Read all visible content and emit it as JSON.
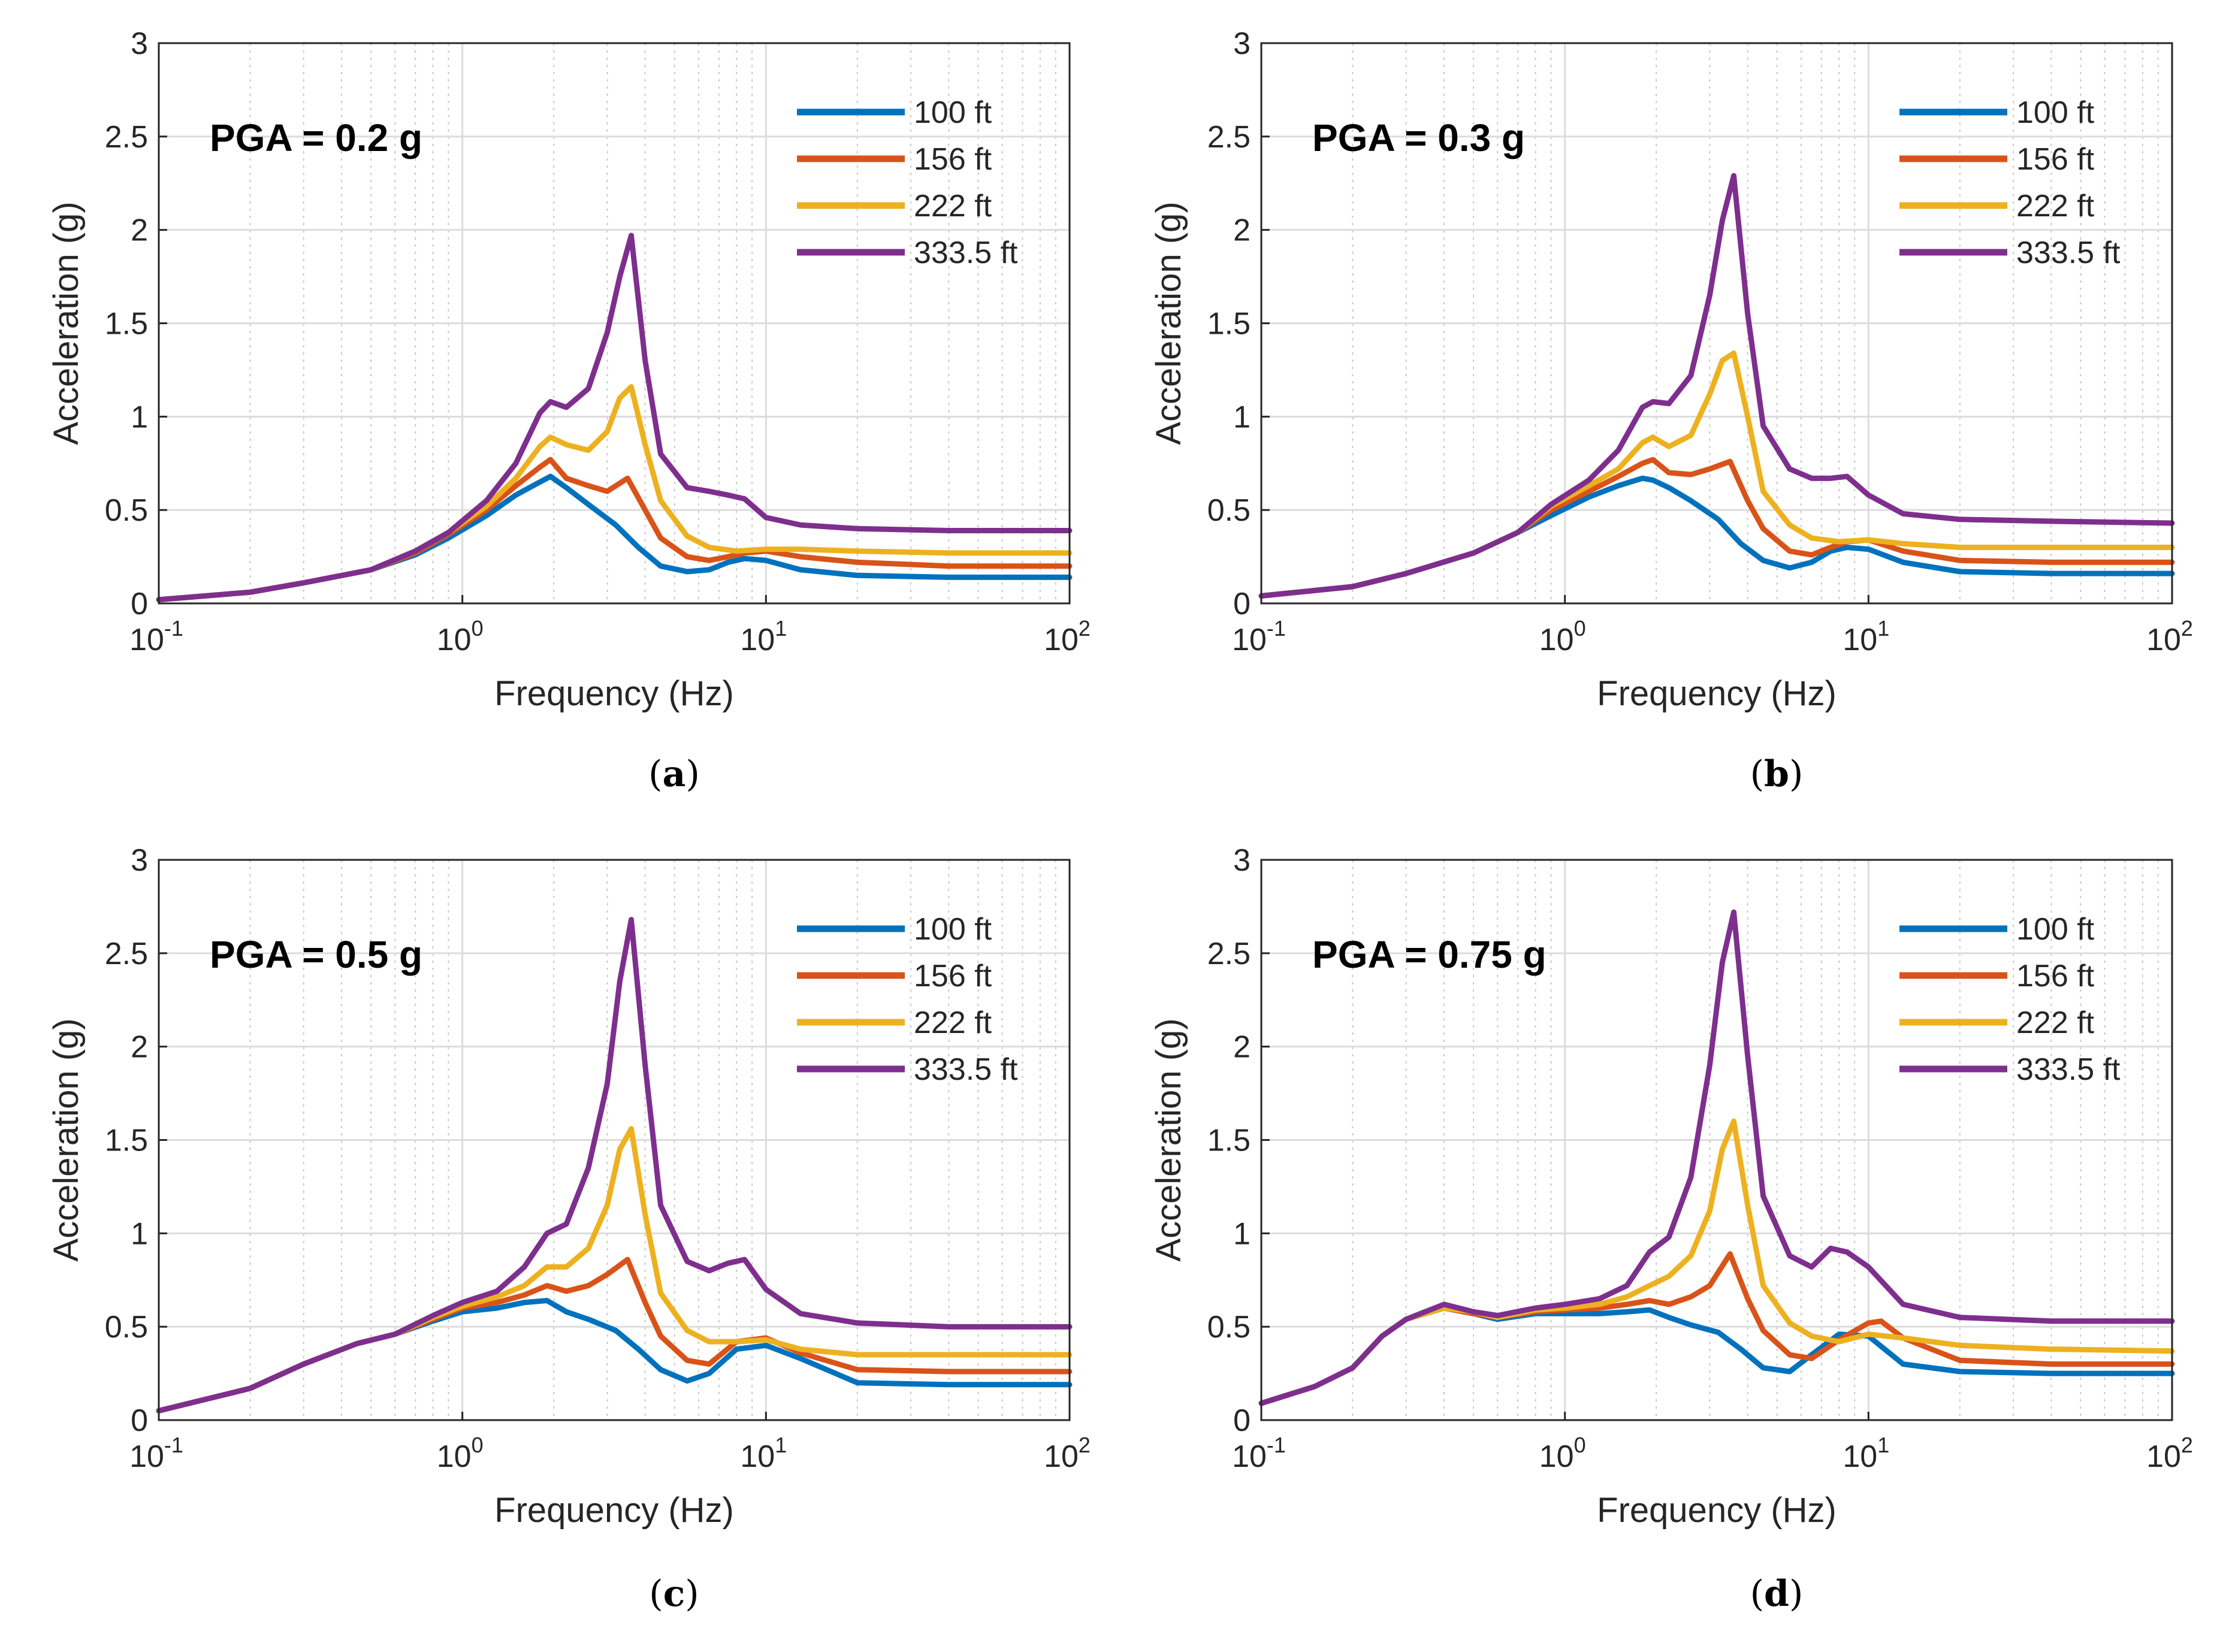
{
  "series_colors": {
    "100 ft": "#0072BD",
    "156 ft": "#D95319",
    "222 ft": "#EDB120",
    "333.5 ft": "#7E2F8E"
  },
  "chart_data": [
    {
      "id": "a",
      "type": "line",
      "caption_letter": "a",
      "annotation": "PGA = 0.2 g",
      "xlabel": "Frequency (Hz)",
      "ylabel": "Acceleration (g)",
      "xscale": "log",
      "xlim": [
        0.1,
        100
      ],
      "ylim": [
        0,
        3
      ],
      "yticks": [
        "0",
        "0.5",
        "1",
        "1.5",
        "2",
        "2.5",
        "3"
      ],
      "xticks": [
        {
          "base": "10",
          "exp": "-1"
        },
        {
          "base": "10",
          "exp": "0"
        },
        {
          "base": "10",
          "exp": "1"
        },
        {
          "base": "10",
          "exp": "2"
        }
      ],
      "legend_position": "top-right",
      "series": [
        {
          "name": "100 ft",
          "x": [
            0.1,
            0.2,
            0.3,
            0.5,
            0.7,
            0.9,
            1.2,
            1.5,
            1.8,
            1.95,
            2.2,
            2.6,
            3.2,
            3.8,
            4.5,
            5.5,
            6.5,
            7.5,
            8.5,
            10,
            13,
            20,
            40,
            100
          ],
          "y": [
            0.02,
            0.06,
            0.11,
            0.18,
            0.26,
            0.35,
            0.47,
            0.58,
            0.65,
            0.68,
            0.62,
            0.53,
            0.42,
            0.3,
            0.2,
            0.17,
            0.18,
            0.22,
            0.24,
            0.23,
            0.18,
            0.15,
            0.14,
            0.14
          ]
        },
        {
          "name": "156 ft",
          "x": [
            0.1,
            0.2,
            0.3,
            0.5,
            0.7,
            0.9,
            1.2,
            1.5,
            1.8,
            1.95,
            2.2,
            2.6,
            3.0,
            3.5,
            4.0,
            4.5,
            5.5,
            6.5,
            7.5,
            8.5,
            10,
            13,
            20,
            40,
            100
          ],
          "y": [
            0.02,
            0.06,
            0.11,
            0.18,
            0.27,
            0.37,
            0.5,
            0.63,
            0.73,
            0.77,
            0.67,
            0.63,
            0.6,
            0.67,
            0.5,
            0.35,
            0.25,
            0.23,
            0.25,
            0.27,
            0.28,
            0.25,
            0.22,
            0.2,
            0.2
          ]
        },
        {
          "name": "222 ft",
          "x": [
            0.1,
            0.2,
            0.3,
            0.5,
            0.7,
            0.9,
            1.2,
            1.5,
            1.8,
            1.95,
            2.2,
            2.6,
            3.0,
            3.3,
            3.6,
            4.0,
            4.5,
            5.5,
            6.5,
            8,
            10,
            13,
            20,
            40,
            100
          ],
          "y": [
            0.02,
            0.06,
            0.11,
            0.18,
            0.28,
            0.38,
            0.52,
            0.67,
            0.84,
            0.89,
            0.85,
            0.82,
            0.92,
            1.1,
            1.16,
            0.85,
            0.55,
            0.36,
            0.3,
            0.28,
            0.29,
            0.29,
            0.28,
            0.27,
            0.27
          ]
        },
        {
          "name": "333.5 ft",
          "x": [
            0.1,
            0.2,
            0.3,
            0.5,
            0.7,
            0.9,
            1.2,
            1.5,
            1.8,
            1.95,
            2.2,
            2.6,
            3.0,
            3.3,
            3.6,
            4.0,
            4.5,
            5.5,
            6.5,
            7.5,
            8.5,
            10,
            13,
            20,
            40,
            100
          ],
          "y": [
            0.02,
            0.06,
            0.11,
            0.18,
            0.28,
            0.38,
            0.55,
            0.75,
            1.02,
            1.08,
            1.05,
            1.15,
            1.45,
            1.75,
            1.97,
            1.3,
            0.8,
            0.62,
            0.6,
            0.58,
            0.56,
            0.46,
            0.42,
            0.4,
            0.39,
            0.39
          ]
        }
      ]
    },
    {
      "id": "b",
      "type": "line",
      "caption_letter": "b",
      "annotation": "PGA = 0.3 g",
      "xlabel": "Frequency (Hz)",
      "ylabel": "Acceleration (g)",
      "xscale": "log",
      "xlim": [
        0.1,
        100
      ],
      "ylim": [
        0,
        3
      ],
      "yticks": [
        "0",
        "0.5",
        "1",
        "1.5",
        "2",
        "2.5",
        "3"
      ],
      "xticks": [
        {
          "base": "10",
          "exp": "-1"
        },
        {
          "base": "10",
          "exp": "0"
        },
        {
          "base": "10",
          "exp": "1"
        },
        {
          "base": "10",
          "exp": "2"
        }
      ],
      "legend_position": "top-right",
      "series": [
        {
          "name": "100 ft",
          "x": [
            0.1,
            0.2,
            0.3,
            0.5,
            0.7,
            0.9,
            1.2,
            1.5,
            1.8,
            1.95,
            2.2,
            2.6,
            3.2,
            3.8,
            4.5,
            5.5,
            6.5,
            7.5,
            8.5,
            10,
            13,
            20,
            40,
            100
          ],
          "y": [
            0.04,
            0.09,
            0.16,
            0.27,
            0.38,
            0.47,
            0.57,
            0.63,
            0.67,
            0.66,
            0.62,
            0.55,
            0.45,
            0.32,
            0.23,
            0.19,
            0.22,
            0.28,
            0.3,
            0.29,
            0.22,
            0.17,
            0.16,
            0.16
          ]
        },
        {
          "name": "156 ft",
          "x": [
            0.1,
            0.2,
            0.3,
            0.5,
            0.7,
            0.9,
            1.2,
            1.5,
            1.8,
            1.95,
            2.2,
            2.6,
            3.0,
            3.5,
            4.0,
            4.5,
            5.5,
            6.5,
            7.5,
            8.5,
            10,
            13,
            20,
            40,
            100
          ],
          "y": [
            0.04,
            0.09,
            0.16,
            0.27,
            0.38,
            0.5,
            0.6,
            0.68,
            0.75,
            0.77,
            0.7,
            0.69,
            0.72,
            0.76,
            0.55,
            0.4,
            0.28,
            0.26,
            0.3,
            0.33,
            0.34,
            0.28,
            0.23,
            0.22,
            0.22
          ]
        },
        {
          "name": "222 ft",
          "x": [
            0.1,
            0.2,
            0.3,
            0.5,
            0.7,
            0.9,
            1.2,
            1.5,
            1.8,
            1.95,
            2.2,
            2.6,
            3.0,
            3.3,
            3.6,
            4.0,
            4.5,
            5.5,
            6.5,
            8,
            10,
            13,
            20,
            40,
            100
          ],
          "y": [
            0.04,
            0.09,
            0.16,
            0.27,
            0.38,
            0.52,
            0.63,
            0.72,
            0.86,
            0.89,
            0.84,
            0.9,
            1.12,
            1.3,
            1.34,
            1.0,
            0.6,
            0.42,
            0.35,
            0.33,
            0.34,
            0.32,
            0.3,
            0.3,
            0.3
          ]
        },
        {
          "name": "333.5 ft",
          "x": [
            0.1,
            0.2,
            0.3,
            0.5,
            0.7,
            0.9,
            1.2,
            1.5,
            1.8,
            1.95,
            2.2,
            2.6,
            3.0,
            3.3,
            3.6,
            4.0,
            4.5,
            5.5,
            6.5,
            7.5,
            8.5,
            10,
            13,
            20,
            40,
            100
          ],
          "y": [
            0.04,
            0.09,
            0.16,
            0.27,
            0.38,
            0.53,
            0.66,
            0.82,
            1.05,
            1.08,
            1.07,
            1.22,
            1.65,
            2.05,
            2.29,
            1.55,
            0.95,
            0.72,
            0.67,
            0.67,
            0.68,
            0.58,
            0.48,
            0.45,
            0.44,
            0.43
          ]
        }
      ]
    },
    {
      "id": "c",
      "type": "line",
      "caption_letter": "c",
      "annotation": "PGA = 0.5 g",
      "xlabel": "Frequency (Hz)",
      "ylabel": "Acceleration (g)",
      "xscale": "log",
      "xlim": [
        0.1,
        100
      ],
      "ylim": [
        0,
        3
      ],
      "yticks": [
        "0",
        "0.5",
        "1",
        "1.5",
        "2",
        "2.5",
        "3"
      ],
      "xticks": [
        {
          "base": "10",
          "exp": "-1"
        },
        {
          "base": "10",
          "exp": "0"
        },
        {
          "base": "10",
          "exp": "1"
        },
        {
          "base": "10",
          "exp": "2"
        }
      ],
      "legend_position": "top-right",
      "series": [
        {
          "name": "100 ft",
          "x": [
            0.1,
            0.2,
            0.3,
            0.45,
            0.6,
            0.8,
            1.0,
            1.3,
            1.6,
            1.9,
            2.2,
            2.6,
            3.2,
            3.8,
            4.5,
            5.5,
            6.5,
            8,
            10,
            13,
            20,
            40,
            100
          ],
          "y": [
            0.05,
            0.17,
            0.3,
            0.41,
            0.46,
            0.53,
            0.58,
            0.6,
            0.63,
            0.64,
            0.58,
            0.54,
            0.48,
            0.38,
            0.27,
            0.21,
            0.25,
            0.38,
            0.4,
            0.33,
            0.2,
            0.19,
            0.19
          ]
        },
        {
          "name": "156 ft",
          "x": [
            0.1,
            0.2,
            0.3,
            0.45,
            0.6,
            0.8,
            1.0,
            1.3,
            1.6,
            1.9,
            2.2,
            2.6,
            3.0,
            3.5,
            4.0,
            4.5,
            5.5,
            6.5,
            8,
            10,
            13,
            20,
            40,
            100
          ],
          "y": [
            0.05,
            0.17,
            0.3,
            0.41,
            0.46,
            0.54,
            0.6,
            0.63,
            0.67,
            0.72,
            0.69,
            0.72,
            0.78,
            0.86,
            0.63,
            0.45,
            0.32,
            0.3,
            0.42,
            0.44,
            0.36,
            0.27,
            0.26,
            0.26
          ]
        },
        {
          "name": "222 ft",
          "x": [
            0.1,
            0.2,
            0.3,
            0.45,
            0.6,
            0.8,
            1.0,
            1.3,
            1.6,
            1.9,
            2.2,
            2.6,
            3.0,
            3.3,
            3.6,
            4.0,
            4.5,
            5.5,
            6.5,
            8,
            10,
            13,
            20,
            40,
            100
          ],
          "y": [
            0.05,
            0.17,
            0.3,
            0.41,
            0.46,
            0.55,
            0.61,
            0.66,
            0.72,
            0.82,
            0.82,
            0.92,
            1.15,
            1.45,
            1.56,
            1.1,
            0.68,
            0.48,
            0.42,
            0.42,
            0.43,
            0.38,
            0.35,
            0.35,
            0.35
          ]
        },
        {
          "name": "333.5 ft",
          "x": [
            0.1,
            0.2,
            0.3,
            0.45,
            0.6,
            0.8,
            1.0,
            1.3,
            1.6,
            1.9,
            2.2,
            2.6,
            3.0,
            3.3,
            3.6,
            4.0,
            4.5,
            5.5,
            6.5,
            7.5,
            8.5,
            10,
            13,
            20,
            40,
            100
          ],
          "y": [
            0.05,
            0.17,
            0.3,
            0.41,
            0.46,
            0.56,
            0.63,
            0.69,
            0.82,
            1.0,
            1.05,
            1.35,
            1.8,
            2.35,
            2.68,
            1.9,
            1.15,
            0.85,
            0.8,
            0.84,
            0.86,
            0.7,
            0.57,
            0.52,
            0.5,
            0.5
          ]
        }
      ]
    },
    {
      "id": "d",
      "type": "line",
      "caption_letter": "d",
      "annotation": "PGA = 0.75 g",
      "xlabel": "Frequency (Hz)",
      "ylabel": "Acceleration (g)",
      "xscale": "log",
      "xlim": [
        0.1,
        100
      ],
      "ylim": [
        0,
        3
      ],
      "yticks": [
        "0",
        "0.5",
        "1",
        "1.5",
        "2",
        "2.5",
        "3"
      ],
      "xticks": [
        {
          "base": "10",
          "exp": "-1"
        },
        {
          "base": "10",
          "exp": "0"
        },
        {
          "base": "10",
          "exp": "1"
        },
        {
          "base": "10",
          "exp": "2"
        }
      ],
      "legend_position": "top-right",
      "series": [
        {
          "name": "100 ft",
          "x": [
            0.1,
            0.15,
            0.2,
            0.25,
            0.3,
            0.4,
            0.5,
            0.6,
            0.8,
            1.0,
            1.3,
            1.6,
            1.9,
            2.2,
            2.6,
            3.2,
            3.8,
            4.5,
            5.5,
            6.5,
            8,
            10,
            13,
            20,
            40,
            100
          ],
          "y": [
            0.09,
            0.18,
            0.28,
            0.45,
            0.54,
            0.6,
            0.57,
            0.54,
            0.57,
            0.57,
            0.57,
            0.58,
            0.59,
            0.55,
            0.51,
            0.47,
            0.38,
            0.28,
            0.26,
            0.35,
            0.46,
            0.45,
            0.3,
            0.26,
            0.25,
            0.25
          ]
        },
        {
          "name": "156 ft",
          "x": [
            0.1,
            0.15,
            0.2,
            0.25,
            0.3,
            0.4,
            0.5,
            0.6,
            0.8,
            1.0,
            1.3,
            1.6,
            1.9,
            2.2,
            2.6,
            3.0,
            3.5,
            4.0,
            4.5,
            5.5,
            6.5,
            8,
            10,
            11,
            13,
            20,
            40,
            100
          ],
          "y": [
            0.09,
            0.18,
            0.28,
            0.45,
            0.54,
            0.6,
            0.57,
            0.55,
            0.58,
            0.59,
            0.6,
            0.62,
            0.64,
            0.62,
            0.66,
            0.72,
            0.89,
            0.65,
            0.48,
            0.35,
            0.33,
            0.43,
            0.52,
            0.53,
            0.44,
            0.32,
            0.3,
            0.3
          ]
        },
        {
          "name": "222 ft",
          "x": [
            0.1,
            0.15,
            0.2,
            0.25,
            0.3,
            0.4,
            0.5,
            0.6,
            0.8,
            1.0,
            1.3,
            1.6,
            1.9,
            2.2,
            2.6,
            3.0,
            3.3,
            3.6,
            4.0,
            4.5,
            5.5,
            6.5,
            8,
            10,
            13,
            20,
            40,
            100
          ],
          "y": [
            0.09,
            0.18,
            0.28,
            0.45,
            0.54,
            0.6,
            0.58,
            0.55,
            0.59,
            0.6,
            0.62,
            0.66,
            0.72,
            0.77,
            0.88,
            1.12,
            1.45,
            1.6,
            1.15,
            0.72,
            0.52,
            0.45,
            0.42,
            0.46,
            0.44,
            0.4,
            0.38,
            0.37
          ]
        },
        {
          "name": "333.5 ft",
          "x": [
            0.1,
            0.15,
            0.2,
            0.25,
            0.3,
            0.4,
            0.5,
            0.6,
            0.8,
            1.0,
            1.3,
            1.6,
            1.9,
            2.2,
            2.6,
            3.0,
            3.3,
            3.6,
            4.0,
            4.5,
            5.5,
            6.5,
            7.5,
            8.5,
            10,
            13,
            20,
            40,
            100
          ],
          "y": [
            0.09,
            0.18,
            0.28,
            0.45,
            0.54,
            0.62,
            0.58,
            0.56,
            0.6,
            0.62,
            0.65,
            0.72,
            0.9,
            0.98,
            1.3,
            1.9,
            2.45,
            2.72,
            1.95,
            1.2,
            0.88,
            0.82,
            0.92,
            0.9,
            0.82,
            0.62,
            0.55,
            0.53,
            0.53
          ]
        }
      ]
    }
  ]
}
